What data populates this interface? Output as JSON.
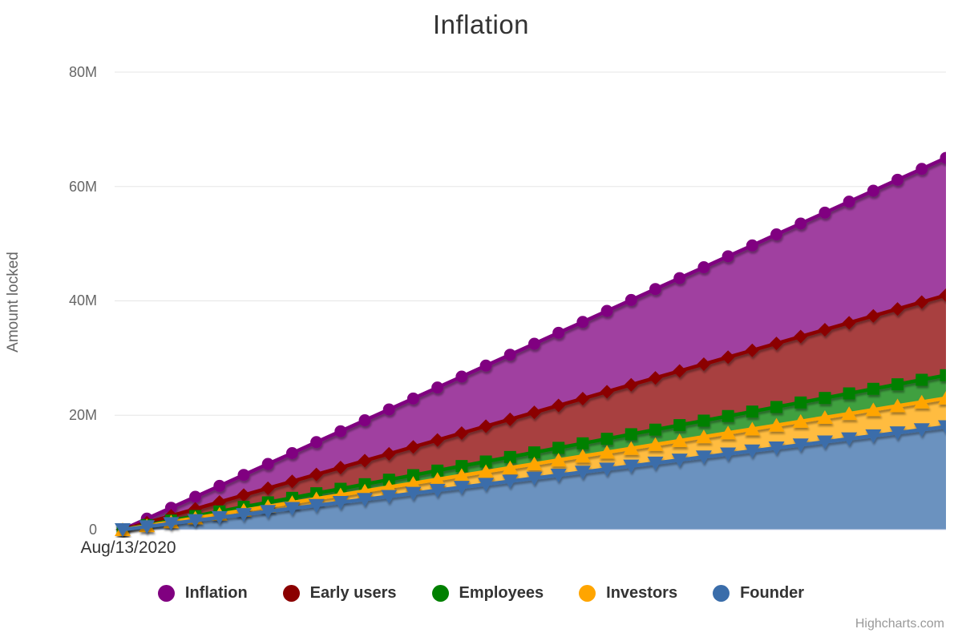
{
  "title": "Inflation",
  "y_axis": {
    "title": "Amount locked",
    "tick_labels": [
      "80M",
      "60M",
      "40M",
      "20M",
      "0"
    ]
  },
  "x_axis": {
    "first_tick_label": "Aug/13/2020"
  },
  "legend": {
    "items": [
      {
        "label": "Inflation"
      },
      {
        "label": "Early users"
      },
      {
        "label": "Employees"
      },
      {
        "label": "Investors"
      },
      {
        "label": "Founder"
      }
    ]
  },
  "credit": "Highcharts.com",
  "chart_data": {
    "type": "area",
    "stacking": "normal",
    "title": "Inflation",
    "ylabel": "Amount locked",
    "ylim": [
      0,
      80000000
    ],
    "y_unit_suffix": "M",
    "y_gridlines_m": [
      0,
      20,
      40,
      60,
      80
    ],
    "x_first_label": "Aug/13/2020",
    "n_points": 35,
    "grid": true,
    "legend_position": "bottom",
    "growth": "linear from 0 at Aug/13/2020 to final value at chart right edge",
    "stack_order_bottom_to_top": [
      "Founder",
      "Investors",
      "Employees",
      "Early users",
      "Inflation"
    ],
    "series": [
      {
        "name": "Inflation",
        "color": "#800080",
        "marker": "circle",
        "final_value_m": 24,
        "values_m": [
          0,
          0.71,
          1.41,
          2.12,
          2.82,
          3.53,
          4.24,
          4.94,
          5.65,
          6.35,
          7.06,
          7.76,
          8.47,
          9.18,
          9.88,
          10.59,
          11.29,
          12,
          12.71,
          13.41,
          14.12,
          14.82,
          15.53,
          16.24,
          16.94,
          17.65,
          18.35,
          19.06,
          19.76,
          20.47,
          21.18,
          21.88,
          22.59,
          23.29,
          24
        ]
      },
      {
        "name": "Early users",
        "color": "#8B0000",
        "marker": "diamond",
        "final_value_m": 14,
        "values_m": [
          0,
          0.41,
          0.82,
          1.24,
          1.65,
          2.06,
          2.47,
          2.88,
          3.29,
          3.71,
          4.12,
          4.53,
          4.94,
          5.35,
          5.76,
          6.18,
          6.59,
          7,
          7.41,
          7.82,
          8.24,
          8.65,
          9.06,
          9.47,
          9.88,
          10.29,
          10.71,
          11.12,
          11.53,
          11.94,
          12.35,
          12.76,
          13.18,
          13.59,
          14
        ]
      },
      {
        "name": "Employees",
        "color": "#008000",
        "marker": "square",
        "final_value_m": 4,
        "values_m": [
          0,
          0.12,
          0.24,
          0.35,
          0.47,
          0.59,
          0.71,
          0.82,
          0.94,
          1.06,
          1.18,
          1.29,
          1.41,
          1.53,
          1.65,
          1.76,
          1.88,
          2,
          2.12,
          2.24,
          2.35,
          2.47,
          2.59,
          2.71,
          2.82,
          2.94,
          3.06,
          3.18,
          3.29,
          3.41,
          3.53,
          3.65,
          3.76,
          3.88,
          4
        ]
      },
      {
        "name": "Investors",
        "color": "#FFA500",
        "marker": "triangle-up",
        "final_value_m": 5,
        "values_m": [
          0,
          0.15,
          0.29,
          0.44,
          0.59,
          0.74,
          0.88,
          1.03,
          1.18,
          1.32,
          1.47,
          1.62,
          1.76,
          1.91,
          2.06,
          2.21,
          2.35,
          2.5,
          2.65,
          2.79,
          2.94,
          3.09,
          3.24,
          3.38,
          3.53,
          3.68,
          3.82,
          3.97,
          4.12,
          4.26,
          4.41,
          4.56,
          4.71,
          4.85,
          5
        ]
      },
      {
        "name": "Founder",
        "color": "#3A6DAA",
        "marker": "triangle-down",
        "final_value_m": 18,
        "values_m": [
          0,
          0.53,
          1.06,
          1.59,
          2.12,
          2.65,
          3.18,
          3.71,
          4.24,
          4.76,
          5.29,
          5.82,
          6.35,
          6.88,
          7.41,
          7.94,
          8.47,
          9,
          9.53,
          10.06,
          10.59,
          11.12,
          11.65,
          12.18,
          12.71,
          13.24,
          13.76,
          14.29,
          14.82,
          15.35,
          15.88,
          16.41,
          16.94,
          17.47,
          18
        ]
      }
    ],
    "area_fill_opacity": 0.75,
    "gridline_color": "#e6e6e6",
    "axis_line_color": "#ccd6eb"
  }
}
